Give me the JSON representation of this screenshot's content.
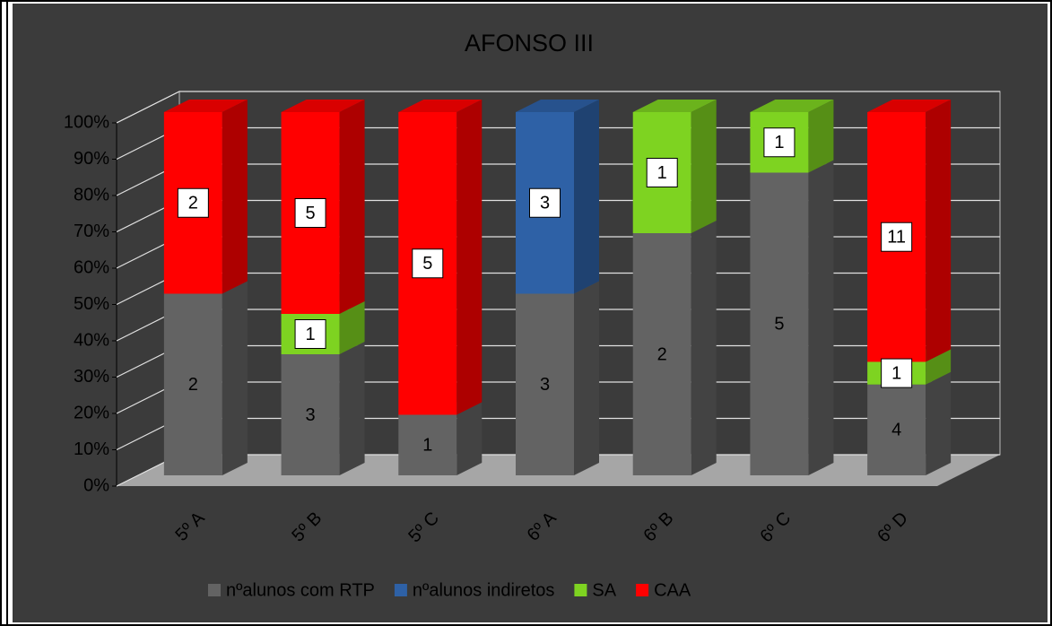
{
  "chart_data": {
    "type": "bar",
    "stacking": "percent",
    "title": "AFONSO III",
    "categories": [
      "5º A",
      "5º B",
      "5º C",
      "6º A",
      "6º B",
      "6º C",
      "6º D"
    ],
    "series": [
      {
        "name": "nºalunos com RTP",
        "color": "#636363",
        "values": [
          2,
          3,
          1,
          3,
          2,
          5,
          4
        ]
      },
      {
        "name": "nºalunos indiretos",
        "color": "#2e61a6",
        "values": [
          null,
          null,
          null,
          3,
          null,
          null,
          null
        ]
      },
      {
        "name": "SA",
        "color": "#7ed321",
        "values": [
          null,
          1,
          null,
          null,
          1,
          1,
          1
        ]
      },
      {
        "name": "CAA",
        "color": "#ff0000",
        "values": [
          2,
          5,
          5,
          null,
          null,
          null,
          11
        ]
      }
    ],
    "ylim": [
      0,
      100
    ],
    "yticks": [
      {
        "value": 0,
        "label": "0%"
      },
      {
        "value": 10,
        "label": "10%"
      },
      {
        "value": 20,
        "label": "20%"
      },
      {
        "value": 30,
        "label": "30%"
      },
      {
        "value": 40,
        "label": "40%"
      },
      {
        "value": 50,
        "label": "50%"
      },
      {
        "value": 60,
        "label": "60%"
      },
      {
        "value": 70,
        "label": "70%"
      },
      {
        "value": 80,
        "label": "80%"
      },
      {
        "value": 90,
        "label": "90%"
      },
      {
        "value": 100,
        "label": "100%"
      }
    ],
    "grid": true,
    "legend": "bottom"
  }
}
